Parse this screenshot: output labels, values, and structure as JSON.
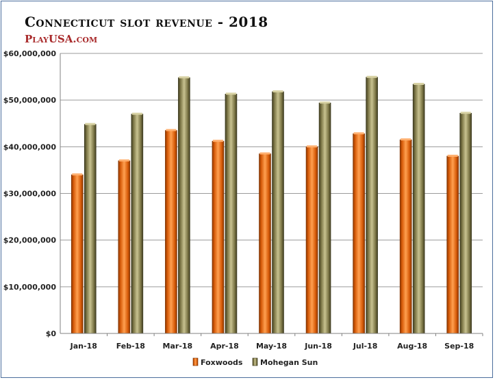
{
  "chart_data": {
    "type": "bar",
    "title": "Connecticut slot revenue - 2018",
    "subtitle": "PlayUSA.com",
    "categories": [
      "Jan-18",
      "Feb-18",
      "Mar-18",
      "Apr-18",
      "May-18",
      "Jun-18",
      "Jul-18",
      "Aug-18",
      "Sep-18"
    ],
    "series": [
      {
        "name": "Foxwoods",
        "color": "#e2640c",
        "values": [
          34000000,
          37000000,
          43500000,
          41200000,
          38500000,
          40000000,
          42800000,
          41500000,
          38000000
        ]
      },
      {
        "name": "Mohegan Sun",
        "color": "#8a8450",
        "values": [
          44800000,
          47000000,
          54800000,
          51300000,
          51800000,
          49400000,
          54900000,
          53400000,
          47200000
        ]
      }
    ],
    "ylim": [
      0,
      60000000
    ],
    "yticks": [
      0,
      10000000,
      20000000,
      30000000,
      40000000,
      50000000,
      60000000
    ],
    "ytick_labels": [
      "$0",
      "$10,000,000",
      "$20,000,000",
      "$30,000,000",
      "$40,000,000",
      "$50,000,000",
      "$60,000,000"
    ],
    "xlabel": "",
    "ylabel": "",
    "grid": true,
    "legend": "bottom"
  }
}
